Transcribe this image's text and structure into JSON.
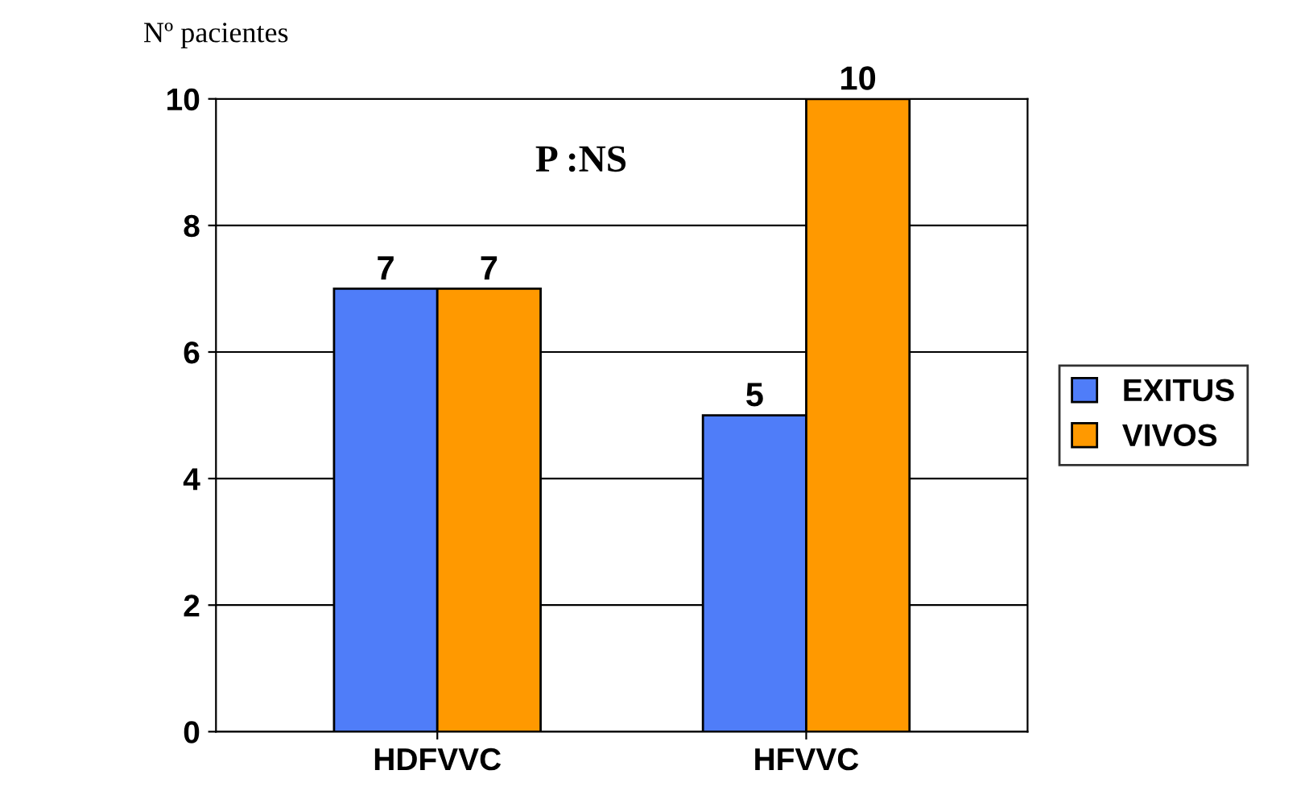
{
  "chart_data": {
    "type": "bar",
    "ylabel": "Nº pacientes",
    "categories": [
      "HDFVVC",
      "HFVVC"
    ],
    "series": [
      {
        "name": "EXITUS",
        "color": "#4f7df9",
        "values": [
          7,
          5
        ]
      },
      {
        "name": "VIVOS",
        "color": "#ff9900",
        "values": [
          7,
          10
        ]
      }
    ],
    "ylim": [
      0,
      10
    ],
    "yticks": [
      0,
      2,
      4,
      6,
      8,
      10
    ],
    "grid": "y",
    "legend": "right",
    "data_labels": true,
    "annotations": [
      "P :NS"
    ]
  }
}
